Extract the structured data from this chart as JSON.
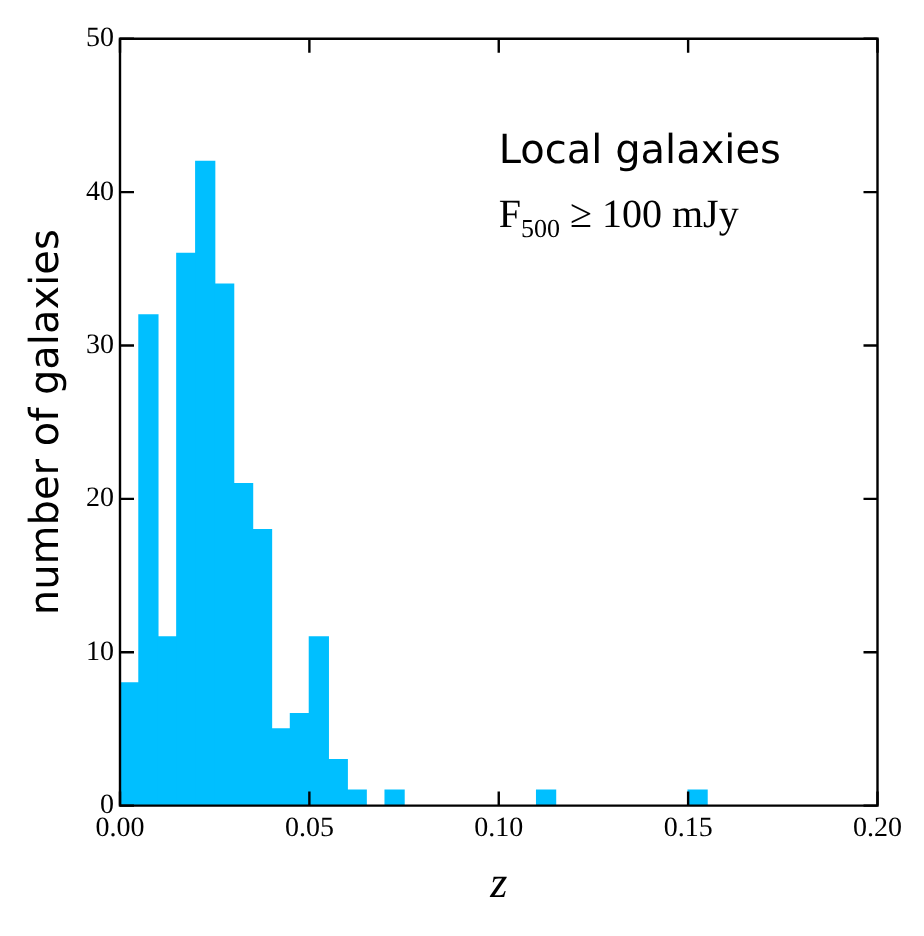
{
  "chart_data": {
    "type": "histogram",
    "bins": [
      0,
      0.005,
      0.01,
      0.015,
      0.02,
      0.025,
      0.03,
      0.035,
      0.04,
      0.045,
      0.05,
      0.055,
      0.06,
      0.065,
      0.07,
      0.075,
      0.08,
      0.085,
      0.09,
      0.095,
      0.1,
      0.105,
      0.11,
      0.115,
      0.12,
      0.125,
      0.13,
      0.135,
      0.14,
      0.145,
      0.15,
      0.155
    ],
    "values": [
      8,
      32,
      11,
      36,
      42,
      34,
      21,
      18,
      5,
      6,
      11,
      3,
      1,
      0,
      1,
      0,
      0,
      0,
      0,
      0,
      0,
      0,
      1,
      0,
      0,
      0,
      0,
      0,
      0,
      0,
      1
    ],
    "color": "#00bfff",
    "xlabel": "z",
    "ylabel": "number of galaxies",
    "xlim": [
      0,
      0.2
    ],
    "ylim": [
      0,
      50
    ],
    "xticks": [
      {
        "value": 0,
        "label": "0.00"
      },
      {
        "value": 0.05,
        "label": "0.05"
      },
      {
        "value": 0.1,
        "label": "0.10"
      },
      {
        "value": 0.15,
        "label": "0.15"
      },
      {
        "value": 0.2,
        "label": "0.20"
      }
    ],
    "yticks": [
      0,
      10,
      20,
      30,
      40,
      50
    ],
    "grid": false,
    "legend": false,
    "annotations": [
      "Local galaxies",
      "F$_{500}$ ≥ 100 mJy"
    ]
  }
}
